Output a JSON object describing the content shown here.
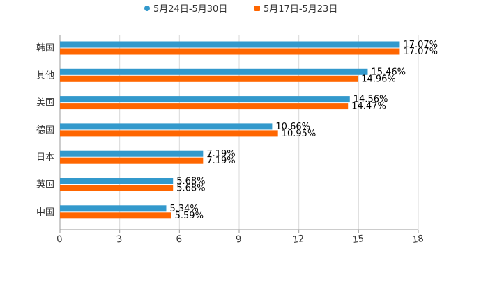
{
  "chart_data": {
    "type": "bar",
    "orientation": "horizontal",
    "title": "",
    "xlabel": "",
    "ylabel": "",
    "categories": [
      "韩国",
      "其他",
      "美国",
      "德国",
      "日本",
      "英国",
      "中国"
    ],
    "series": [
      {
        "name": "5月24日-5月30日",
        "color": "#3399cc",
        "values": [
          17.07,
          15.46,
          14.56,
          10.66,
          7.19,
          5.68,
          5.34
        ],
        "labels": [
          "17.07%",
          "15.46%",
          "14.56%",
          "10.66%",
          "7.19%",
          "5.68%",
          "5.34%"
        ]
      },
      {
        "name": "5月17日-5月23日",
        "color": "#ff6600",
        "values": [
          17.07,
          14.96,
          14.47,
          10.95,
          7.19,
          5.68,
          5.59
        ],
        "labels": [
          "17.07%",
          "14.96%",
          "14.47%",
          "10.95%",
          "7.19%",
          "5.68%",
          "5.59%"
        ]
      }
    ],
    "xlim": [
      0,
      18
    ],
    "xticks": [
      "0",
      "3",
      "6",
      "9",
      "12",
      "15",
      "18"
    ],
    "grid": true,
    "legend_position": "top-center"
  }
}
